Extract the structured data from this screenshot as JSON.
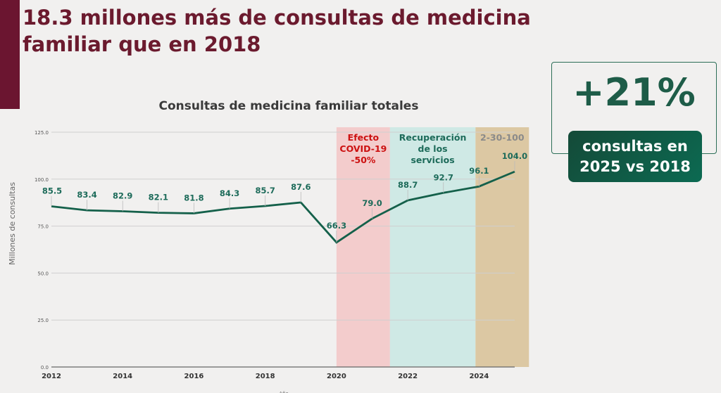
{
  "slide": {
    "title": "18.3 millones más de consultas de medicina familiar que en 2018",
    "accent_color": "#6b1530"
  },
  "kpi": {
    "value": "+21%",
    "label_line1": "consultas en",
    "label_line2": "2025 vs 2018",
    "color": "#1e5c48"
  },
  "chart_data": {
    "type": "line",
    "title": "Consultas de medicina familiar totales",
    "xlabel": "Año",
    "ylabel": "Millones de consultas",
    "x": [
      2012,
      2013,
      2014,
      2015,
      2016,
      2017,
      2018,
      2019,
      2020,
      2021,
      2022,
      2023,
      2024,
      2025
    ],
    "values": [
      85.5,
      83.4,
      82.9,
      82.1,
      81.8,
      84.3,
      85.7,
      87.6,
      66.3,
      79.0,
      88.7,
      92.7,
      96.1,
      104.0
    ],
    "data_labels": [
      "85.5",
      "83.4",
      "82.9",
      "82.1",
      "81.8",
      "84.3",
      "85.7",
      "87.6",
      "66.3",
      "79.0",
      "88.7",
      "92.7",
      "96.1",
      "104.0"
    ],
    "xticks": [
      "2012",
      "2014",
      "2016",
      "2018",
      "2020",
      "2022",
      "2024"
    ],
    "yticks": [
      "0.0",
      "25.0",
      "50.0",
      "75.0",
      "100.0",
      "125.0"
    ],
    "ylim": [
      0,
      125
    ],
    "xlim": [
      2012,
      2025
    ],
    "grid": true,
    "line_color": "#14604a",
    "regions": [
      {
        "label_lines": [
          "Efecto",
          "COVID-19",
          "-50%"
        ],
        "from": 2020,
        "to": 2021.5,
        "fill": "#f3cccc",
        "label_color": "#cc1111"
      },
      {
        "label_lines": [
          "Recuperación",
          "de los",
          "servicios"
        ],
        "from": 2021.5,
        "to": 2023.9,
        "fill": "#cfe9e5",
        "label_color": "#1d6b5a"
      },
      {
        "label_lines": [
          "2-30-100"
        ],
        "from": 2023.9,
        "to": 2025.4,
        "fill": "#dcc8a3",
        "label_color": "#8a8a8a"
      }
    ]
  }
}
